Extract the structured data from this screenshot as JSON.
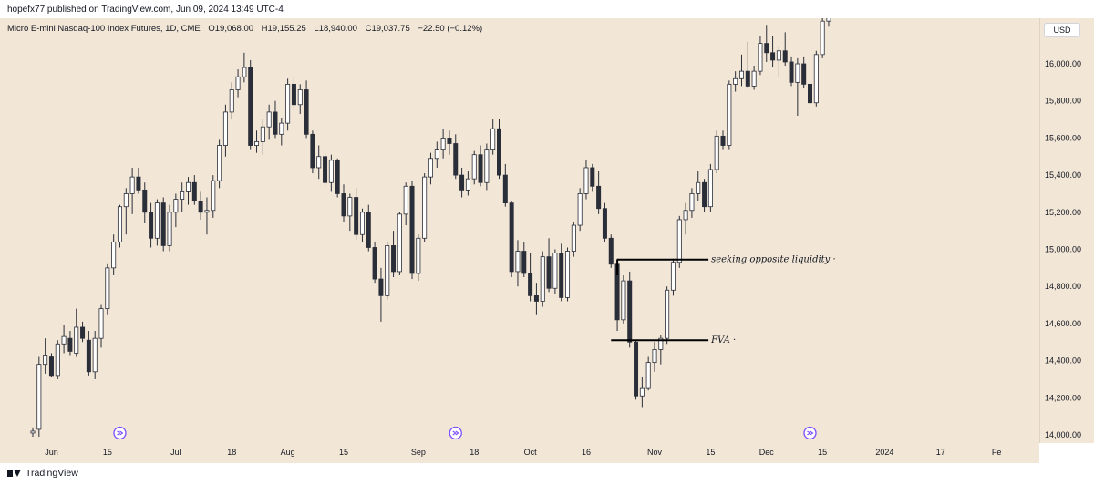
{
  "header": {
    "publisher_text": "hopefx77 published on TradingView.com, Jun 09, 2024 13:49 UTC-4"
  },
  "symbol": {
    "name": "Micro E-mini Nasdaq-100 Index Futures, 1D, CME",
    "open": "O19,068.00",
    "high": "H19,155.25",
    "low": "L18,940.00",
    "close": "C19,037.75",
    "change": "−22.50 (−0.12%)"
  },
  "currency_badge": "USD",
  "footer": {
    "logo_text": "TradingView"
  },
  "colors": {
    "background": "#f2e6d6",
    "candle_up_fill": "#ffffff",
    "candle_down_fill": "#2a2e39",
    "candle_outline": "#2a2e39",
    "annotation_line": "#000000",
    "event_icon": "#7c4dff"
  },
  "icons": [
    "dividend-event-icon",
    "dividend-event-icon",
    "dividend-event-icon"
  ],
  "chart_data": {
    "type": "candlestick",
    "title": "Micro E-mini Nasdaq-100 Index Futures, 1D, CME",
    "x_tick_labels": [
      "Jun",
      "15",
      "Jul",
      "18",
      "Aug",
      "15",
      "Sep",
      "18",
      "Oct",
      "16",
      "Nov",
      "15",
      "Dec",
      "15",
      "2024",
      "17",
      "Fe"
    ],
    "y_tick_labels": [
      "16,000.00",
      "15,800.00",
      "15,600.00",
      "15,400.00",
      "15,200.00",
      "15,000.00",
      "14,800.00",
      "14,600.00",
      "14,400.00",
      "14,200.00",
      "14,000.00"
    ],
    "y_ticks": [
      16000,
      15800,
      15600,
      15400,
      15200,
      15000,
      14800,
      14600,
      14400,
      14200,
      14000
    ],
    "ylim": [
      13920,
      16500
    ],
    "x_ticks": [
      {
        "label": "Jun",
        "index": 3
      },
      {
        "label": "15",
        "index": 12
      },
      {
        "label": "Jul",
        "index": 23
      },
      {
        "label": "18",
        "index": 32
      },
      {
        "label": "Aug",
        "index": 41
      },
      {
        "label": "15",
        "index": 50
      },
      {
        "label": "Sep",
        "index": 62
      },
      {
        "label": "18",
        "index": 71
      },
      {
        "label": "Oct",
        "index": 80
      },
      {
        "label": "16",
        "index": 89
      },
      {
        "label": "Nov",
        "index": 100
      },
      {
        "label": "15",
        "index": 109
      },
      {
        "label": "Dec",
        "index": 118
      },
      {
        "label": "15",
        "index": 127
      },
      {
        "label": "2024",
        "index": 137
      },
      {
        "label": "17",
        "index": 146
      },
      {
        "label": "Fe",
        "index": 155
      }
    ],
    "events": [
      {
        "name": "dividend-event",
        "index": 14
      },
      {
        "name": "dividend-event",
        "index": 68
      },
      {
        "name": "dividend-event",
        "index": 125
      }
    ],
    "annotations": [
      {
        "text": "seeking opposite liquidity",
        "price": 14945,
        "from_index": 94,
        "to_index": 105
      },
      {
        "text": "seeking opposite liquidity",
        "price": 14945,
        "from_index": 94,
        "to_index": 94,
        "vertical_to": 14860
      },
      {
        "text": "FVA",
        "price": 14510,
        "from_index": 93,
        "to_index": 105
      }
    ],
    "ohlc": [
      [
        14010,
        14040,
        13990,
        14020
      ],
      [
        14030,
        14420,
        13990,
        14380
      ],
      [
        14380,
        14520,
        14330,
        14430
      ],
      [
        14420,
        14440,
        14310,
        14320
      ],
      [
        14320,
        14510,
        14300,
        14490
      ],
      [
        14490,
        14590,
        14440,
        14530
      ],
      [
        14520,
        14560,
        14430,
        14450
      ],
      [
        14440,
        14680,
        14420,
        14580
      ],
      [
        14580,
        14610,
        14500,
        14520
      ],
      [
        14510,
        14560,
        14320,
        14340
      ],
      [
        14340,
        14560,
        14300,
        14520
      ],
      [
        14520,
        14700,
        14470,
        14680
      ],
      [
        14680,
        14920,
        14650,
        14900
      ],
      [
        14900,
        15080,
        14860,
        15040
      ],
      [
        15040,
        15240,
        15010,
        15230
      ],
      [
        15230,
        15330,
        15080,
        15300
      ],
      [
        15300,
        15440,
        15190,
        15390
      ],
      [
        15390,
        15440,
        15300,
        15320
      ],
      [
        15320,
        15360,
        15140,
        15200
      ],
      [
        15200,
        15250,
        15010,
        15060
      ],
      [
        15060,
        15270,
        15020,
        15250
      ],
      [
        15250,
        15280,
        14990,
        15020
      ],
      [
        15020,
        15240,
        14990,
        15200
      ],
      [
        15200,
        15300,
        15120,
        15270
      ],
      [
        15270,
        15360,
        15200,
        15310
      ],
      [
        15310,
        15390,
        15240,
        15360
      ],
      [
        15360,
        15400,
        15240,
        15260
      ],
      [
        15260,
        15310,
        15160,
        15200
      ],
      [
        15200,
        15280,
        15080,
        15210
      ],
      [
        15210,
        15400,
        15170,
        15370
      ],
      [
        15370,
        15590,
        15330,
        15560
      ],
      [
        15560,
        15780,
        15500,
        15740
      ],
      [
        15740,
        15900,
        15700,
        15860
      ],
      [
        15860,
        15970,
        15820,
        15930
      ],
      [
        15930,
        16060,
        15900,
        15980
      ],
      [
        15980,
        16020,
        15540,
        15560
      ],
      [
        15560,
        15640,
        15520,
        15580
      ],
      [
        15580,
        15700,
        15510,
        15660
      ],
      [
        15660,
        15780,
        15590,
        15740
      ],
      [
        15740,
        15800,
        15600,
        15620
      ],
      [
        15620,
        15710,
        15560,
        15680
      ],
      [
        15680,
        15920,
        15640,
        15890
      ],
      [
        15890,
        15930,
        15750,
        15780
      ],
      [
        15780,
        15890,
        15730,
        15860
      ],
      [
        15860,
        15910,
        15600,
        15620
      ],
      [
        15620,
        15640,
        15410,
        15440
      ],
      [
        15440,
        15560,
        15380,
        15500
      ],
      [
        15500,
        15520,
        15340,
        15360
      ],
      [
        15360,
        15510,
        15310,
        15480
      ],
      [
        15480,
        15490,
        15280,
        15300
      ],
      [
        15300,
        15350,
        15150,
        15180
      ],
      [
        15180,
        15300,
        15100,
        15280
      ],
      [
        15280,
        15330,
        15050,
        15080
      ],
      [
        15080,
        15220,
        15040,
        15200
      ],
      [
        15200,
        15240,
        14990,
        15010
      ],
      [
        15010,
        15040,
        14820,
        14840
      ],
      [
        14840,
        14900,
        14610,
        14750
      ],
      [
        14750,
        15040,
        14730,
        15020
      ],
      [
        15020,
        15100,
        14850,
        14880
      ],
      [
        14880,
        15200,
        14860,
        15190
      ],
      [
        15190,
        15360,
        15130,
        15340
      ],
      [
        15340,
        15370,
        14840,
        14870
      ],
      [
        14870,
        15080,
        14830,
        15060
      ],
      [
        15060,
        15410,
        15040,
        15390
      ],
      [
        15390,
        15520,
        15350,
        15490
      ],
      [
        15490,
        15580,
        15440,
        15540
      ],
      [
        15540,
        15650,
        15490,
        15600
      ],
      [
        15600,
        15640,
        15510,
        15570
      ],
      [
        15570,
        15620,
        15380,
        15400
      ],
      [
        15400,
        15440,
        15280,
        15320
      ],
      [
        15320,
        15420,
        15290,
        15380
      ],
      [
        15380,
        15530,
        15350,
        15510
      ],
      [
        15510,
        15560,
        15340,
        15360
      ],
      [
        15360,
        15570,
        15320,
        15540
      ],
      [
        15540,
        15700,
        15510,
        15650
      ],
      [
        15650,
        15700,
        15380,
        15400
      ],
      [
        15400,
        15460,
        15230,
        15250
      ],
      [
        15250,
        15260,
        14850,
        14880
      ],
      [
        14880,
        15050,
        14800,
        14990
      ],
      [
        14990,
        15040,
        14850,
        14870
      ],
      [
        14870,
        14980,
        14720,
        14750
      ],
      [
        14750,
        14820,
        14650,
        14720
      ],
      [
        14720,
        14990,
        14690,
        14960
      ],
      [
        14960,
        15060,
        14770,
        14790
      ],
      [
        14790,
        15000,
        14760,
        14980
      ],
      [
        14980,
        15030,
        14720,
        14740
      ],
      [
        14740,
        15010,
        14720,
        14990
      ],
      [
        14990,
        15150,
        14960,
        15130
      ],
      [
        15130,
        15330,
        15100,
        15300
      ],
      [
        15300,
        15480,
        15270,
        15440
      ],
      [
        15440,
        15460,
        15310,
        15340
      ],
      [
        15340,
        15420,
        15190,
        15220
      ],
      [
        15220,
        15250,
        15040,
        15060
      ],
      [
        15060,
        15080,
        14900,
        14920
      ],
      [
        14920,
        14950,
        14560,
        14620
      ],
      [
        14620,
        14860,
        14600,
        14830
      ],
      [
        14830,
        14880,
        14470,
        14500
      ],
      [
        14500,
        14510,
        14190,
        14210
      ],
      [
        14210,
        14310,
        14150,
        14250
      ],
      [
        14250,
        14420,
        14240,
        14390
      ],
      [
        14390,
        14500,
        14340,
        14460
      ],
      [
        14460,
        14540,
        14380,
        14520
      ],
      [
        14520,
        14800,
        14490,
        14780
      ],
      [
        14780,
        14950,
        14750,
        14930
      ],
      [
        14930,
        15180,
        14900,
        15160
      ],
      [
        15160,
        15250,
        15080,
        15210
      ],
      [
        15210,
        15330,
        15170,
        15300
      ],
      [
        15300,
        15420,
        15260,
        15360
      ],
      [
        15360,
        15380,
        15200,
        15230
      ],
      [
        15230,
        15460,
        15200,
        15430
      ],
      [
        15430,
        15640,
        15410,
        15610
      ],
      [
        15610,
        15640,
        15540,
        15560
      ],
      [
        15560,
        15910,
        15540,
        15890
      ],
      [
        15890,
        15960,
        15850,
        15920
      ],
      [
        15920,
        16050,
        15880,
        15960
      ],
      [
        15960,
        16120,
        15870,
        15880
      ],
      [
        15880,
        15990,
        15860,
        15960
      ],
      [
        15960,
        16150,
        15940,
        16110
      ],
      [
        16110,
        16210,
        16010,
        16060
      ],
      [
        16060,
        16150,
        15980,
        16020
      ],
      [
        16020,
        16090,
        15930,
        16070
      ],
      [
        16070,
        16170,
        15990,
        16010
      ],
      [
        16010,
        16040,
        15880,
        15900
      ],
      [
        15900,
        16030,
        15720,
        16000
      ],
      [
        16000,
        16040,
        15870,
        15890
      ],
      [
        15890,
        15910,
        15740,
        15790
      ],
      [
        15790,
        16070,
        15770,
        16050
      ],
      [
        16050,
        16290,
        16030,
        16230
      ],
      [
        16230,
        16420,
        16200,
        16410
      ]
    ]
  }
}
